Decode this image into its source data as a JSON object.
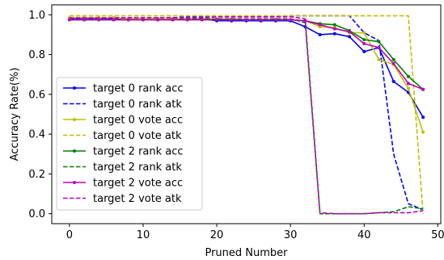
{
  "chart_data": {
    "type": "line",
    "title": "",
    "xlabel": "Pruned Number",
    "ylabel": "Accuracy Rate(%)",
    "xlim": [
      -2.4,
      50.4
    ],
    "ylim": [
      -0.05,
      1.05
    ],
    "xticks": [
      0,
      10,
      20,
      30,
      40,
      50
    ],
    "yticks": [
      0.0,
      0.2,
      0.4,
      0.6,
      0.8,
      1.0
    ],
    "xtick_labels": [
      "0",
      "10",
      "20",
      "30",
      "40",
      "50"
    ],
    "ytick_labels": [
      "0.0",
      "0.2",
      "0.4",
      "0.6",
      "0.8",
      "1.0"
    ],
    "legend_position": "center-left",
    "x": [
      0,
      2,
      4,
      6,
      8,
      10,
      12,
      14,
      16,
      18,
      20,
      22,
      24,
      26,
      28,
      30,
      32,
      34,
      36,
      38,
      40,
      42,
      44,
      46,
      48
    ],
    "series": [
      {
        "name": "target 0 rank acc",
        "color": "#0000ff",
        "style": "solid",
        "marker": true,
        "values": [
          0.98,
          0.98,
          0.98,
          0.98,
          0.98,
          0.98,
          0.98,
          0.98,
          0.98,
          0.98,
          0.97,
          0.97,
          0.97,
          0.97,
          0.97,
          0.97,
          0.94,
          0.9,
          0.905,
          0.89,
          0.815,
          0.835,
          0.665,
          0.61,
          0.485
        ]
      },
      {
        "name": "target 0 rank atk",
        "color": "#0000ff",
        "style": "dashed",
        "marker": false,
        "values": [
          0.98,
          0.98,
          0.98,
          0.985,
          0.985,
          0.985,
          0.985,
          0.985,
          0.99,
          0.99,
          0.99,
          0.99,
          0.99,
          0.99,
          0.99,
          0.995,
          0.995,
          0.995,
          0.995,
          0.995,
          0.91,
          0.87,
          0.3,
          0.05,
          0.02
        ]
      },
      {
        "name": "target 0 vote acc",
        "color": "#bfbf00",
        "style": "solid",
        "marker": true,
        "values": [
          0.985,
          0.985,
          0.985,
          0.985,
          0.98,
          0.98,
          0.98,
          0.98,
          0.98,
          0.98,
          0.98,
          0.98,
          0.975,
          0.975,
          0.975,
          0.975,
          0.97,
          0.94,
          0.935,
          0.91,
          0.91,
          0.775,
          0.75,
          0.63,
          0.41
        ]
      },
      {
        "name": "target 0 vote atk",
        "color": "#bfbf00",
        "style": "dashed",
        "marker": false,
        "values": [
          0.995,
          0.995,
          0.995,
          0.995,
          0.995,
          0.995,
          0.995,
          0.995,
          0.995,
          0.995,
          0.995,
          0.995,
          0.995,
          0.995,
          0.995,
          0.995,
          0.995,
          0.995,
          0.995,
          0.995,
          0.995,
          0.995,
          0.995,
          0.995,
          0.0
        ]
      },
      {
        "name": "target 2 rank acc",
        "color": "#008000",
        "style": "solid",
        "marker": true,
        "values": [
          0.975,
          0.975,
          0.975,
          0.975,
          0.975,
          0.975,
          0.975,
          0.975,
          0.975,
          0.975,
          0.975,
          0.975,
          0.975,
          0.975,
          0.975,
          0.975,
          0.97,
          0.955,
          0.95,
          0.92,
          0.875,
          0.865,
          0.775,
          0.69,
          0.625
        ]
      },
      {
        "name": "target 2 rank atk",
        "color": "#008000",
        "style": "dashed",
        "marker": false,
        "values": [
          0.975,
          0.975,
          0.975,
          0.975,
          0.975,
          0.975,
          0.975,
          0.975,
          0.98,
          0.98,
          0.98,
          0.98,
          0.98,
          0.98,
          0.98,
          0.98,
          0.96,
          0.0,
          0.0,
          0.0,
          0.0,
          0.005,
          0.01,
          0.035,
          0.025
        ]
      },
      {
        "name": "target 2 vote acc",
        "color": "#bf00bf",
        "style": "solid",
        "marker": true,
        "values": [
          0.975,
          0.975,
          0.975,
          0.975,
          0.975,
          0.975,
          0.975,
          0.975,
          0.975,
          0.975,
          0.975,
          0.975,
          0.975,
          0.975,
          0.975,
          0.975,
          0.97,
          0.95,
          0.93,
          0.915,
          0.855,
          0.835,
          0.755,
          0.655,
          0.625
        ]
      },
      {
        "name": "target 2 vote atk",
        "color": "#bf00bf",
        "style": "dashed",
        "marker": false,
        "values": [
          0.985,
          0.985,
          0.985,
          0.985,
          0.985,
          0.985,
          0.985,
          0.985,
          0.985,
          0.985,
          0.99,
          0.99,
          0.99,
          0.99,
          0.99,
          0.99,
          0.98,
          0.005,
          0.0,
          0.0,
          0.0,
          0.005,
          0.005,
          0.005,
          0.015
        ]
      }
    ]
  }
}
